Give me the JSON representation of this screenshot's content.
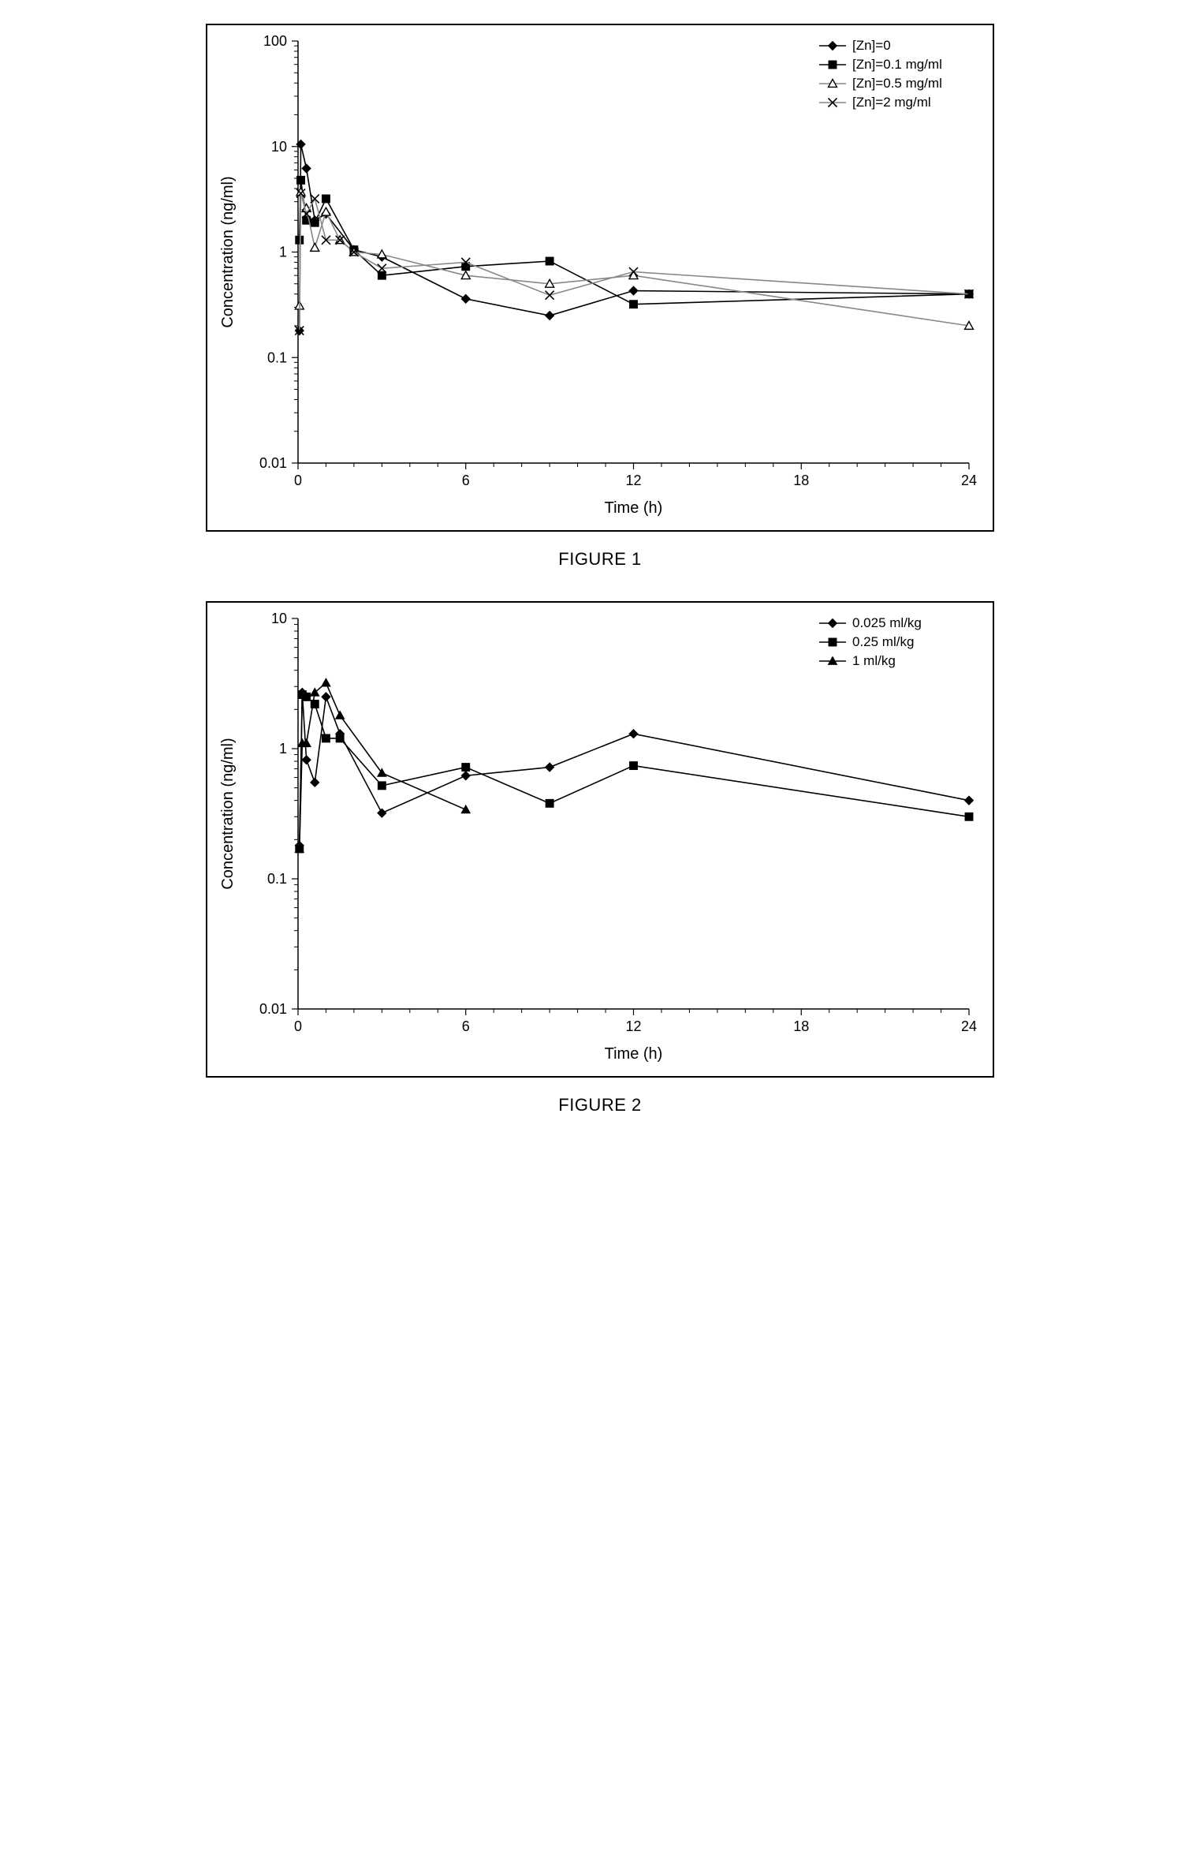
{
  "figure1": {
    "type": "line",
    "caption": "FIGURE 1",
    "xlabel": "Time (h)",
    "ylabel": "Concentration (ng/ml)",
    "xlim": [
      0,
      24
    ],
    "xticks": [
      0,
      6,
      12,
      18,
      24
    ],
    "ylim": [
      0.01,
      100
    ],
    "yscale": "log",
    "ytick_labels": [
      "0.01",
      "0.1",
      "1",
      "10",
      "100"
    ],
    "ytick_values": [
      0.01,
      0.1,
      1,
      10,
      100
    ],
    "background_color": "#ffffff",
    "line_color_black": "#000000",
    "line_color_gray": "#888888",
    "legend_pos": "top-right",
    "series": [
      {
        "label": "[Zn]=0",
        "marker": "diamond-filled",
        "color": "#000000",
        "line_color": "#000000",
        "data": [
          {
            "x": 0.05,
            "y": 0.18
          },
          {
            "x": 0.1,
            "y": 10.5
          },
          {
            "x": 0.3,
            "y": 6.2
          },
          {
            "x": 0.6,
            "y": 2.0
          },
          {
            "x": 1.0,
            "y": 2.3
          },
          {
            "x": 2.0,
            "y": 1.05
          },
          {
            "x": 3.0,
            "y": 0.9
          },
          {
            "x": 6.0,
            "y": 0.36
          },
          {
            "x": 9.0,
            "y": 0.25
          },
          {
            "x": 12.0,
            "y": 0.43
          },
          {
            "x": 24.0,
            "y": 0.4
          }
        ]
      },
      {
        "label": "[Zn]=0.1 mg/ml",
        "marker": "square-filled",
        "color": "#000000",
        "line_color": "#000000",
        "data": [
          {
            "x": 0.05,
            "y": 1.3
          },
          {
            "x": 0.1,
            "y": 4.8
          },
          {
            "x": 0.3,
            "y": 2.0
          },
          {
            "x": 0.6,
            "y": 1.9
          },
          {
            "x": 1.0,
            "y": 3.2
          },
          {
            "x": 2.0,
            "y": 1.05
          },
          {
            "x": 3.0,
            "y": 0.6
          },
          {
            "x": 6.0,
            "y": 0.73
          },
          {
            "x": 9.0,
            "y": 0.82
          },
          {
            "x": 12.0,
            "y": 0.32
          },
          {
            "x": 24.0,
            "y": 0.4
          }
        ]
      },
      {
        "label": "[Zn]=0.5 mg/ml",
        "marker": "triangle-open",
        "color": "#000000",
        "line_color": "#888888",
        "data": [
          {
            "x": 0.05,
            "y": 0.31
          },
          {
            "x": 0.1,
            "y": 3.7
          },
          {
            "x": 0.3,
            "y": 2.6
          },
          {
            "x": 0.6,
            "y": 1.1
          },
          {
            "x": 1.0,
            "y": 2.4
          },
          {
            "x": 1.5,
            "y": 1.3
          },
          {
            "x": 2.0,
            "y": 1.0
          },
          {
            "x": 3.0,
            "y": 0.95
          },
          {
            "x": 6.0,
            "y": 0.6
          },
          {
            "x": 9.0,
            "y": 0.5
          },
          {
            "x": 12.0,
            "y": 0.6
          },
          {
            "x": 24.0,
            "y": 0.2
          }
        ]
      },
      {
        "label": "[Zn]=2 mg/ml",
        "marker": "x",
        "color": "#000000",
        "line_color": "#888888",
        "data": [
          {
            "x": 0.05,
            "y": 0.18
          },
          {
            "x": 0.1,
            "y": 3.6
          },
          {
            "x": 0.3,
            "y": 2.3
          },
          {
            "x": 0.6,
            "y": 3.2
          },
          {
            "x": 1.0,
            "y": 1.3
          },
          {
            "x": 1.5,
            "y": 1.3
          },
          {
            "x": 2.0,
            "y": 1.0
          },
          {
            "x": 3.0,
            "y": 0.7
          },
          {
            "x": 6.0,
            "y": 0.8
          },
          {
            "x": 9.0,
            "y": 0.39
          },
          {
            "x": 12.0,
            "y": 0.65
          },
          {
            "x": 24.0,
            "y": 0.4
          }
        ]
      }
    ]
  },
  "figure2": {
    "type": "line",
    "caption": "FIGURE 2",
    "xlabel": "Time (h)",
    "ylabel": "Concentration (ng/ml)",
    "xlim": [
      0,
      24
    ],
    "xticks": [
      0,
      6,
      12,
      18,
      24
    ],
    "ylim": [
      0.01,
      10
    ],
    "yscale": "log",
    "ytick_labels": [
      "0.01",
      "0.1",
      "1",
      "10"
    ],
    "ytick_values": [
      0.01,
      0.1,
      1,
      10
    ],
    "background_color": "#ffffff",
    "line_color_black": "#000000",
    "legend_pos": "top-right",
    "series": [
      {
        "label": "0.025 ml/kg",
        "marker": "diamond-filled",
        "color": "#000000",
        "line_color": "#000000",
        "data": [
          {
            "x": 0.05,
            "y": 0.18
          },
          {
            "x": 0.15,
            "y": 2.7
          },
          {
            "x": 0.3,
            "y": 0.82
          },
          {
            "x": 0.6,
            "y": 0.55
          },
          {
            "x": 1.0,
            "y": 2.5
          },
          {
            "x": 1.5,
            "y": 1.3
          },
          {
            "x": 3.0,
            "y": 0.32
          },
          {
            "x": 6.0,
            "y": 0.62
          },
          {
            "x": 9.0,
            "y": 0.72
          },
          {
            "x": 12.0,
            "y": 1.3
          },
          {
            "x": 24.0,
            "y": 0.4
          }
        ]
      },
      {
        "label": "0.25 ml/kg",
        "marker": "square-filled",
        "color": "#000000",
        "line_color": "#000000",
        "data": [
          {
            "x": 0.05,
            "y": 0.17
          },
          {
            "x": 0.15,
            "y": 2.6
          },
          {
            "x": 0.3,
            "y": 2.5
          },
          {
            "x": 0.6,
            "y": 2.2
          },
          {
            "x": 1.0,
            "y": 1.2
          },
          {
            "x": 1.5,
            "y": 1.2
          },
          {
            "x": 3.0,
            "y": 0.52
          },
          {
            "x": 6.0,
            "y": 0.72
          },
          {
            "x": 9.0,
            "y": 0.38
          },
          {
            "x": 12.0,
            "y": 0.74
          },
          {
            "x": 24.0,
            "y": 0.3
          }
        ]
      },
      {
        "label": "1 ml/kg",
        "marker": "triangle-filled",
        "color": "#000000",
        "line_color": "#000000",
        "data": [
          {
            "x": 0.05,
            "y": 0.17
          },
          {
            "x": 0.15,
            "y": 1.1
          },
          {
            "x": 0.3,
            "y": 1.1
          },
          {
            "x": 0.6,
            "y": 2.7
          },
          {
            "x": 1.0,
            "y": 3.2
          },
          {
            "x": 1.5,
            "y": 1.8
          },
          {
            "x": 3.0,
            "y": 0.65
          },
          {
            "x": 6.0,
            "y": 0.34
          }
        ]
      }
    ]
  }
}
